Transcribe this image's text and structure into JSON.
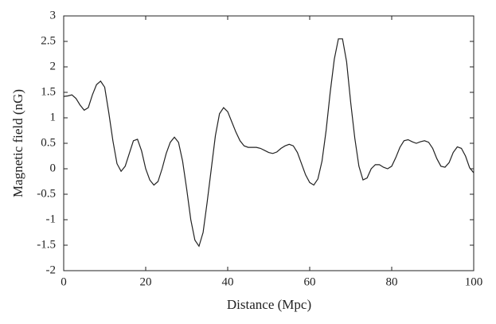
{
  "chart_data": {
    "type": "line",
    "xlabel": "Distance (Mpc)",
    "ylabel": "Magnetic field (nG)",
    "x": [
      0,
      1,
      2,
      3,
      4,
      5,
      6,
      7,
      8,
      9,
      10,
      11,
      12,
      13,
      14,
      15,
      16,
      17,
      18,
      19,
      20,
      21,
      22,
      23,
      24,
      25,
      26,
      27,
      28,
      29,
      30,
      31,
      32,
      33,
      34,
      35,
      36,
      37,
      38,
      39,
      40,
      41,
      42,
      43,
      44,
      45,
      46,
      47,
      48,
      49,
      50,
      51,
      52,
      53,
      54,
      55,
      56,
      57,
      58,
      59,
      60,
      61,
      62,
      63,
      64,
      65,
      66,
      67,
      68,
      69,
      70,
      71,
      72,
      73,
      74,
      75,
      76,
      77,
      78,
      79,
      80,
      81,
      82,
      83,
      84,
      85,
      86,
      87,
      88,
      89,
      90,
      91,
      92,
      93,
      94,
      95,
      96,
      97,
      98,
      99,
      100
    ],
    "series": [
      {
        "color": "#222222",
        "values": [
          1.42,
          1.43,
          1.45,
          1.38,
          1.25,
          1.15,
          1.2,
          1.45,
          1.65,
          1.72,
          1.6,
          1.1,
          0.55,
          0.1,
          -0.05,
          0.05,
          0.3,
          0.55,
          0.58,
          0.35,
          0.0,
          -0.22,
          -0.32,
          -0.25,
          0.0,
          0.3,
          0.52,
          0.62,
          0.52,
          0.15,
          -0.4,
          -1.0,
          -1.4,
          -1.52,
          -1.25,
          -0.65,
          0.0,
          0.65,
          1.08,
          1.2,
          1.12,
          0.92,
          0.72,
          0.55,
          0.45,
          0.42,
          0.42,
          0.42,
          0.4,
          0.36,
          0.32,
          0.3,
          0.33,
          0.4,
          0.45,
          0.48,
          0.45,
          0.32,
          0.1,
          -0.12,
          -0.27,
          -0.32,
          -0.2,
          0.15,
          0.75,
          1.5,
          2.15,
          2.55,
          2.55,
          2.1,
          1.3,
          0.6,
          0.05,
          -0.22,
          -0.18,
          0.0,
          0.08,
          0.08,
          0.03,
          0.0,
          0.05,
          0.22,
          0.42,
          0.55,
          0.57,
          0.53,
          0.5,
          0.53,
          0.55,
          0.52,
          0.4,
          0.2,
          0.05,
          0.03,
          0.12,
          0.32,
          0.43,
          0.4,
          0.25,
          0.02,
          -0.08
        ]
      }
    ],
    "xlim": [
      0,
      100
    ],
    "xticks": [
      0,
      20,
      40,
      60,
      80,
      100
    ],
    "ylim": [
      -2,
      3
    ],
    "yticks": [
      -2,
      -1.5,
      -1,
      -0.5,
      0,
      0.5,
      1,
      1.5,
      2,
      2.5,
      3
    ]
  }
}
